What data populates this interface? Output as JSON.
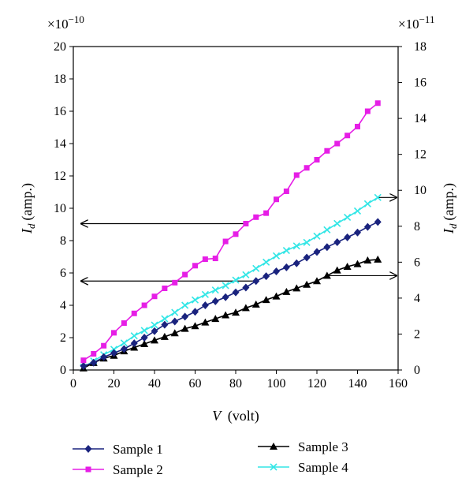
{
  "chart_data": {
    "type": "line",
    "x": [
      5,
      10,
      15,
      20,
      25,
      30,
      35,
      40,
      45,
      50,
      55,
      60,
      65,
      70,
      75,
      80,
      85,
      90,
      95,
      100,
      105,
      110,
      115,
      120,
      125,
      130,
      135,
      140,
      145,
      150
    ],
    "xlim": [
      0,
      160
    ],
    "xticks": [
      "0",
      "20",
      "40",
      "60",
      "80",
      "100",
      "120",
      "140",
      "160"
    ],
    "xlabel_var": "V",
    "xlabel_unit": "(volt)",
    "left_axis": {
      "ylim": [
        0,
        20
      ],
      "ticks": [
        "0",
        "2",
        "4",
        "6",
        "8",
        "10",
        "12",
        "14",
        "16",
        "18",
        "20"
      ],
      "multiplier_base": "×10",
      "multiplier_exp": "−10",
      "label_var": "I",
      "label_sub": "d",
      "label_unit": "(amp.)"
    },
    "right_axis": {
      "ylim": [
        0,
        18
      ],
      "ticks": [
        "0",
        "2",
        "4",
        "6",
        "8",
        "10",
        "12",
        "14",
        "16",
        "18"
      ],
      "multiplier_base": "×10",
      "multiplier_exp": "−11",
      "label_var": "I",
      "label_sub": "d",
      "label_unit": "(amp.)"
    },
    "series": [
      {
        "name": "Sample 1",
        "color": "#1a237e",
        "marker": "diamond",
        "axis": "left",
        "values": [
          0.25,
          0.45,
          0.8,
          1.05,
          1.3,
          1.65,
          2.0,
          2.4,
          2.8,
          3.0,
          3.3,
          3.6,
          4.0,
          4.25,
          4.5,
          4.8,
          5.1,
          5.5,
          5.8,
          6.1,
          6.35,
          6.6,
          6.95,
          7.3,
          7.6,
          7.9,
          8.2,
          8.5,
          8.85,
          9.15
        ]
      },
      {
        "name": "Sample 2",
        "color": "#e61ee6",
        "marker": "square",
        "axis": "left",
        "values": [
          0.6,
          1.0,
          1.5,
          2.3,
          2.9,
          3.5,
          4.0,
          4.55,
          5.05,
          5.4,
          5.9,
          6.45,
          6.85,
          6.9,
          7.95,
          8.4,
          9.05,
          9.45,
          9.7,
          10.55,
          11.05,
          12.05,
          12.5,
          13.0,
          13.55,
          14.0,
          14.5,
          15.05,
          16.0,
          16.5
        ]
      },
      {
        "name": "Sample 3",
        "color": "#000000",
        "marker": "triangle",
        "axis": "right",
        "values": [
          0.1,
          0.4,
          0.65,
          0.8,
          1.05,
          1.25,
          1.45,
          1.65,
          1.85,
          2.05,
          2.3,
          2.45,
          2.65,
          2.85,
          3.05,
          3.2,
          3.45,
          3.65,
          3.9,
          4.1,
          4.35,
          4.55,
          4.75,
          4.95,
          5.25,
          5.55,
          5.75,
          5.9,
          6.1,
          6.15
        ]
      },
      {
        "name": "Sample 4",
        "color": "#33e6e6",
        "marker": "x",
        "axis": "right",
        "values": [
          0.15,
          0.5,
          0.85,
          1.15,
          1.5,
          1.9,
          2.2,
          2.5,
          2.85,
          3.2,
          3.6,
          3.9,
          4.2,
          4.45,
          4.7,
          5.0,
          5.3,
          5.65,
          6.0,
          6.35,
          6.65,
          6.9,
          7.1,
          7.45,
          7.8,
          8.15,
          8.5,
          8.85,
          9.25,
          9.6
        ]
      }
    ],
    "legend": {
      "placement": "bottom",
      "columns": 2
    }
  }
}
